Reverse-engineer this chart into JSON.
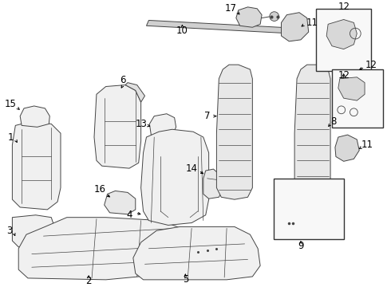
{
  "bg_color": "#ffffff",
  "lc": "#444444",
  "lw": 0.7,
  "fs": 8.5,
  "figsize": [
    4.9,
    3.6
  ],
  "dpi": 100
}
